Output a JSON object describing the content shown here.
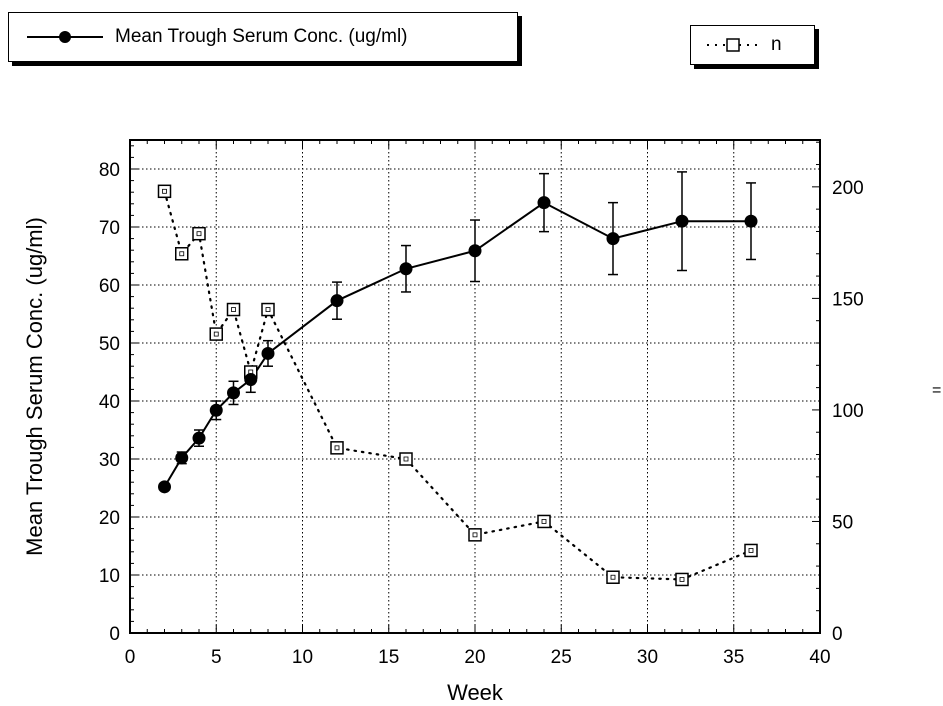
{
  "chart_data": {
    "type": "line",
    "xlabel": "Week",
    "ylabel": "Mean Trough Serum Conc. (ug/ml)",
    "y2label": "",
    "xlim": [
      0,
      40
    ],
    "ylim": [
      0,
      85
    ],
    "y2lim": [
      0,
      221
    ],
    "xticks": [
      0,
      5,
      10,
      15,
      20,
      25,
      30,
      35,
      40
    ],
    "yticks": [
      0,
      10,
      20,
      30,
      40,
      50,
      60,
      70,
      80
    ],
    "y2ticks": [
      0,
      50,
      100,
      150,
      200
    ],
    "grid": true,
    "legend_placement": "top",
    "series": [
      {
        "name": "Mean Trough Serum Conc. (ug/ml)",
        "axis": "left",
        "style": "solid line, filled circles",
        "x": [
          2,
          3,
          4,
          5,
          6,
          7,
          8,
          12,
          16,
          20,
          24,
          28,
          32,
          36
        ],
        "y": [
          25.2,
          30.2,
          33.6,
          38.4,
          41.4,
          43.7,
          48.2,
          57.3,
          62.8,
          65.9,
          74.2,
          68.0,
          71.0,
          71.0
        ],
        "err": [
          0,
          1.0,
          1.4,
          1.6,
          2.0,
          2.2,
          2.2,
          3.2,
          4.0,
          5.3,
          5.0,
          6.2,
          8.5,
          6.6
        ]
      },
      {
        "name": "n",
        "axis": "right",
        "style": "dotted line, open squares",
        "x": [
          2,
          3,
          4,
          5,
          6,
          7,
          8,
          12,
          16,
          20,
          24,
          28,
          32,
          36
        ],
        "y": [
          198,
          170,
          179,
          134,
          145,
          117,
          145,
          83,
          78,
          44,
          50,
          25,
          24,
          37
        ]
      }
    ]
  },
  "legend": {
    "mean_label": "Mean Trough Serum Conc. (ug/ml)",
    "n_label": "n"
  },
  "edge_mark": "="
}
